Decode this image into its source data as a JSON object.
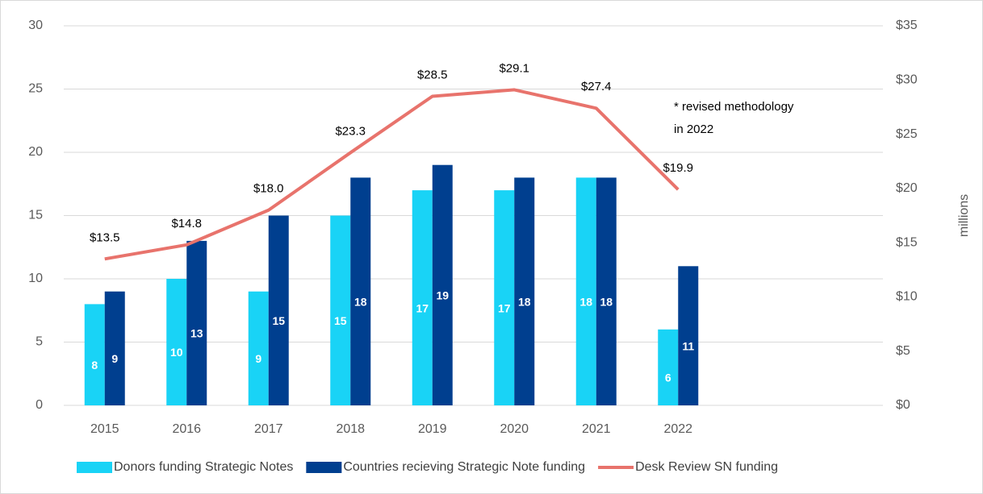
{
  "chart_data": {
    "type": "bar_line",
    "categories": [
      "2015",
      "2016",
      "2017",
      "2018",
      "2019",
      "2020",
      "2021",
      "2022",
      null,
      null
    ],
    "series": [
      {
        "name": "Donors funding Strategic Notes",
        "color": "#19d3f6",
        "type": "bar",
        "values": [
          8,
          10,
          9,
          15,
          17,
          17,
          18,
          6,
          null,
          null
        ]
      },
      {
        "name": "Countries recieving Strategic Note funding",
        "color": "#003f8f",
        "type": "bar",
        "values": [
          9,
          13,
          15,
          18,
          19,
          18,
          18,
          11,
          null,
          null
        ]
      },
      {
        "name": "Desk Review SN funding",
        "color": "#e8736c",
        "type": "line",
        "axis": "y2",
        "values": [
          13.5,
          14.8,
          18.0,
          23.3,
          28.5,
          29.1,
          27.4,
          19.9,
          null,
          null
        ],
        "value_labels": [
          "$13.5",
          "$14.8",
          "$18.0",
          "$23.3",
          "$28.5",
          "$29.1",
          "$27.4",
          "$19.9",
          null,
          null
        ]
      }
    ],
    "ylim": [
      0,
      30
    ],
    "yticks": [
      0,
      5,
      10,
      15,
      20,
      25,
      30
    ],
    "y2lim": [
      0,
      35
    ],
    "y2ticks": [
      {
        "value": 0,
        "label": "$0"
      },
      {
        "value": 5,
        "label": "$5"
      },
      {
        "value": 10,
        "label": "$10"
      },
      {
        "value": 15,
        "label": "$15"
      },
      {
        "value": 20,
        "label": "$20"
      },
      {
        "value": 25,
        "label": "$25"
      },
      {
        "value": 30,
        "label": "$30"
      },
      {
        "value": 35,
        "label": "$35"
      }
    ],
    "y2_label": "millions",
    "annotation": [
      "* revised methodology",
      "in 2022"
    ],
    "grid": true,
    "legend": "bottom"
  }
}
